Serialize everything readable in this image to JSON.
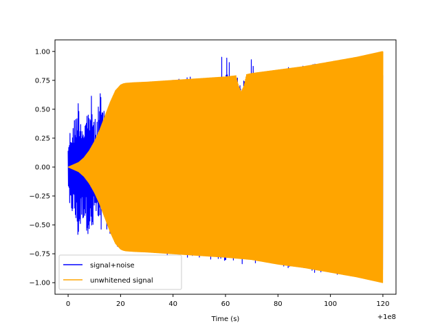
{
  "chart_data": {
    "type": "line",
    "title": "",
    "xlabel": "Time (s)",
    "ylabel": "",
    "x_offset_text": "+1e8",
    "xlim": [
      -5,
      125
    ],
    "ylim": [
      -1.1,
      1.1
    ],
    "x_ticks": [
      0,
      20,
      40,
      60,
      80,
      100,
      120
    ],
    "x_tick_labels": [
      "0",
      "20",
      "40",
      "60",
      "80",
      "100",
      "120"
    ],
    "y_ticks": [
      -1.0,
      -0.75,
      -0.5,
      -0.25,
      0.0,
      0.25,
      0.5,
      0.75,
      1.0
    ],
    "y_tick_labels": [
      "−1.00",
      "−0.75",
      "−0.50",
      "−0.25",
      "0.00",
      "0.25",
      "0.50",
      "0.75",
      "1.00"
    ],
    "grid": false,
    "legend_position": "lower-left",
    "series": [
      {
        "name": "signal+noise",
        "color": "#0000ff",
        "envelope_upper": {
          "x": [
            0,
            0.5,
            1,
            2,
            3,
            4,
            5,
            6,
            7,
            8,
            9,
            10,
            11,
            12,
            13,
            14,
            15,
            16,
            17,
            18,
            20,
            22,
            25,
            30,
            35,
            40,
            41,
            42,
            46,
            47,
            48,
            55,
            56,
            60,
            65,
            66,
            67,
            71,
            72,
            80,
            90,
            100,
            110,
            120
          ],
          "y": [
            0.22,
            0.3,
            0.35,
            0.38,
            0.5,
            0.62,
            0.45,
            0.4,
            0.5,
            0.55,
            0.63,
            0.4,
            0.45,
            0.7,
            0.56,
            0.45,
            0.4,
            0.45,
            0.5,
            0.55,
            0.65,
            0.72,
            0.73,
            0.74,
            0.75,
            0.76,
            0.81,
            0.77,
            0.78,
            0.79,
            0.78,
            0.8,
            0.87,
            1.0,
            0.8,
            0.8,
            0.82,
            0.98,
            0.83,
            0.85,
            0.88,
            0.92,
            0.95,
            1.0
          ]
        },
        "envelope_lower": {
          "x": [
            0,
            0.5,
            1,
            2,
            3,
            4,
            5,
            6,
            7,
            8,
            9,
            10,
            11,
            12,
            13,
            14,
            15,
            16,
            17,
            18,
            20,
            22,
            25,
            30,
            35,
            40,
            45,
            46,
            47,
            48,
            55,
            60,
            65,
            66,
            67,
            70,
            80,
            90,
            100,
            110,
            120
          ],
          "y": [
            -0.1,
            -0.5,
            -0.45,
            -0.4,
            -0.55,
            -0.68,
            -0.5,
            -0.45,
            -0.55,
            -0.6,
            -0.72,
            -0.45,
            -0.5,
            -0.68,
            -0.58,
            -0.5,
            -0.55,
            -0.62,
            -0.65,
            -0.68,
            -0.7,
            -0.72,
            -0.73,
            -0.75,
            -0.76,
            -0.77,
            -0.78,
            -0.91,
            -0.78,
            -0.79,
            -0.8,
            -0.81,
            -0.82,
            -0.86,
            -0.82,
            -0.83,
            -0.86,
            -0.9,
            -0.93,
            -0.96,
            -1.0
          ]
        }
      },
      {
        "name": "unwhitened signal",
        "color": "#ffa500",
        "envelope_upper": {
          "x": [
            0,
            2,
            4,
            6,
            8,
            10,
            12,
            14,
            16,
            18,
            20,
            21,
            22,
            25,
            30,
            40,
            50,
            60,
            64,
            65,
            66,
            67,
            68,
            70,
            80,
            90,
            100,
            110,
            120
          ],
          "y": [
            0.0,
            0.02,
            0.04,
            0.08,
            0.14,
            0.22,
            0.32,
            0.44,
            0.56,
            0.66,
            0.71,
            0.72,
            0.725,
            0.73,
            0.735,
            0.75,
            0.765,
            0.78,
            0.79,
            0.7,
            0.65,
            0.7,
            0.8,
            0.81,
            0.84,
            0.87,
            0.91,
            0.95,
            1.0
          ]
        },
        "envelope_lower": {
          "x": [
            0,
            2,
            4,
            6,
            8,
            10,
            12,
            14,
            16,
            18,
            20,
            21,
            22,
            25,
            30,
            40,
            50,
            60,
            70,
            80,
            90,
            100,
            110,
            120
          ],
          "y": [
            0.0,
            -0.02,
            -0.04,
            -0.08,
            -0.14,
            -0.22,
            -0.32,
            -0.44,
            -0.56,
            -0.66,
            -0.71,
            -0.72,
            -0.725,
            -0.73,
            -0.735,
            -0.75,
            -0.765,
            -0.78,
            -0.8,
            -0.84,
            -0.87,
            -0.91,
            -0.95,
            -1.0
          ]
        }
      }
    ]
  }
}
